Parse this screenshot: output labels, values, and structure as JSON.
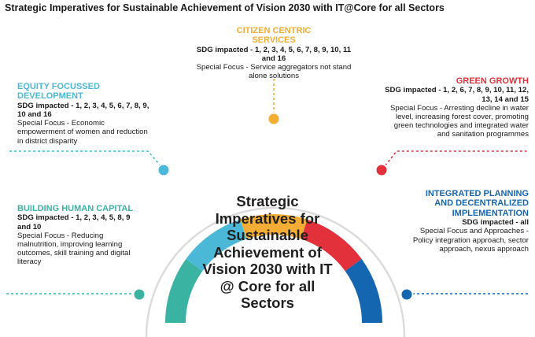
{
  "title": "Strategic Imperatives for Sustainable Achievement of Vision 2030 with IT@Core for all Sectors",
  "center": {
    "text": "Strategic Imperatives for Sustainable Achievement of Vision 2030 with IT @ Core for all Sectors"
  },
  "colors": {
    "teal": "#3bb3a3",
    "sky": "#4cb8d8",
    "amber": "#f3ad34",
    "red": "#e2313b",
    "blue": "#1566b0",
    "ring": "#dcdcdc"
  },
  "imperatives": {
    "human_capital": {
      "heading": "BUILDING HUMAN CAPITAL",
      "sdg": "SDG impacted - 1, 2, 3, 4, 5, 8, 9 and 10",
      "focus": "Special Focus - Reducing malnutrition, improving learning outcomes, skill training and digital literacy",
      "color": "#3bb3a3"
    },
    "equity": {
      "heading": "EQUITY FOCUSSED DEVELOPMENT",
      "sdg": "SDG impacted - 1, 2, 3, 4, 5, 6, 7, 8, 9, 10 and 16",
      "focus": "Special Focus - Economic empowerment of women and reduction in district disparity",
      "color": "#4cb8d8"
    },
    "citizen": {
      "heading": "CITIZEN CENTRIC SERVICES",
      "sdg": "SDG impacted - 1, 2, 3, 4, 5, 6, 7, 8, 9, 10, 11 and 16",
      "focus": "Special Focus - Service aggregators not stand alone solutions",
      "color": "#f3ad34"
    },
    "green": {
      "heading": "GREEN GROWTH",
      "sdg": "SDG impacted - 1, 2, 6, 7, 8, 9, 10, 11, 12, 13, 14 and 15",
      "focus": "Special Focus - Arresting decline in water level, increasing forest cover, promoting green technologies and integrated water and sanitation programmes",
      "color": "#e2313b"
    },
    "integrated": {
      "heading": "INTEGRATED PLANNING AND DECENTRALIZED IMPLEMENTATION",
      "sdg": "SDG impacted - all",
      "focus": "Special Focus and Approaches - Policy integration approach, sector approach, nexus approach",
      "color": "#1566b0"
    }
  }
}
